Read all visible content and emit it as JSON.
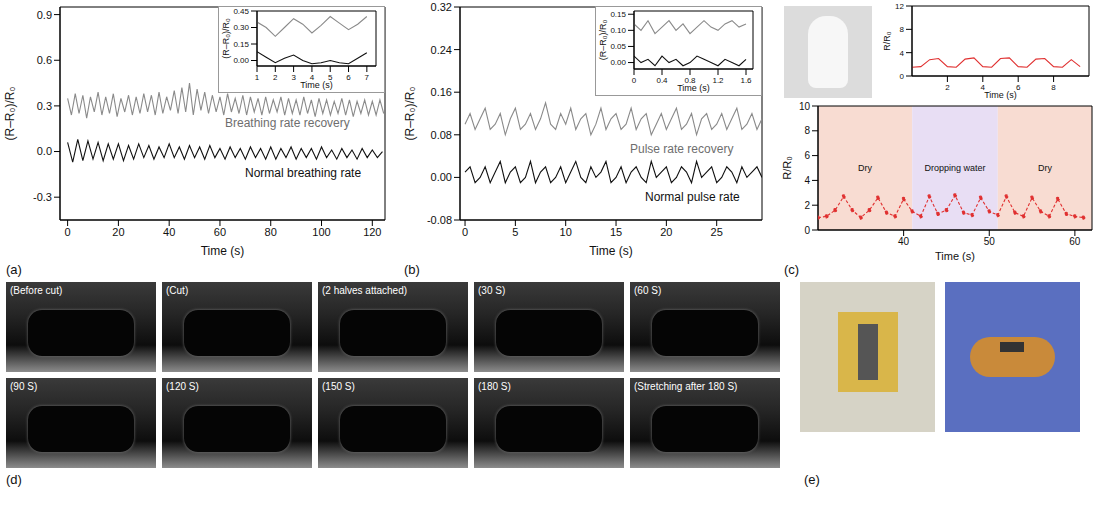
{
  "chart_data": [
    {
      "type": "line",
      "xlabel": "Time (s)",
      "ylabel": "(R–R₀)/R₀",
      "xlim": [
        -3,
        125
      ],
      "ylim": [
        -0.45,
        0.95
      ],
      "xticks": [
        0,
        20,
        40,
        60,
        80,
        100,
        120
      ],
      "yticks": [
        -0.3,
        {
          "value": 0,
          "label": "0.0"
        },
        0.3,
        0.6,
        0.9
      ],
      "series": [
        {
          "name": "Breathing rate recovery",
          "color": "#8a8a8a",
          "x": [
            0,
            1.5,
            3,
            4.5,
            6,
            7.5,
            9,
            10.5,
            12,
            13.5,
            15,
            16.5,
            18,
            19.5,
            21,
            22.5,
            24,
            25.5,
            27,
            28.5,
            30,
            31.5,
            33,
            34.5,
            36,
            37.5,
            39,
            40.5,
            42,
            43.5,
            45,
            46.5,
            48,
            49.5,
            51,
            52.5,
            54,
            55.5,
            57,
            58.5,
            60,
            61.5,
            63,
            64.5,
            66,
            67.5,
            69,
            70.5,
            72,
            73.5,
            75,
            76.5,
            78,
            79.5,
            81,
            82.5,
            84,
            85.5,
            87,
            88.5,
            90,
            91.5,
            93,
            94.5,
            96,
            97.5,
            99,
            100.5,
            102,
            103.5,
            105,
            106.5,
            108,
            109.5,
            111,
            112.5,
            114,
            115.5,
            117,
            118.5,
            120,
            121.5,
            123,
            124.5
          ],
          "values": [
            0.35,
            0.24,
            0.38,
            0.25,
            0.37,
            0.22,
            0.36,
            0.26,
            0.39,
            0.24,
            0.36,
            0.25,
            0.38,
            0.23,
            0.35,
            0.26,
            0.37,
            0.24,
            0.36,
            0.25,
            0.38,
            0.26,
            0.37,
            0.24,
            0.39,
            0.25,
            0.36,
            0.27,
            0.4,
            0.25,
            0.42,
            0.26,
            0.45,
            0.24,
            0.41,
            0.27,
            0.39,
            0.25,
            0.37,
            0.26,
            0.36,
            0.24,
            0.38,
            0.26,
            0.35,
            0.25,
            0.37,
            0.24,
            0.36,
            0.26,
            0.35,
            0.24,
            0.36,
            0.25,
            0.34,
            0.26,
            0.36,
            0.24,
            0.35,
            0.25,
            0.34,
            0.24,
            0.36,
            0.25,
            0.34,
            0.23,
            0.35,
            0.25,
            0.34,
            0.24,
            0.33,
            0.25,
            0.35,
            0.24,
            0.34,
            0.23,
            0.33,
            0.25,
            0.34,
            0.24,
            0.33,
            0.24,
            0.34,
            0.25
          ]
        },
        {
          "name": "Normal breathing rate",
          "color": "#111111",
          "x": [
            0,
            2,
            4,
            6,
            8,
            10,
            12,
            14,
            16,
            18,
            20,
            22,
            24,
            26,
            28,
            30,
            32,
            34,
            36,
            38,
            40,
            42,
            44,
            46,
            48,
            50,
            52,
            54,
            56,
            58,
            60,
            62,
            64,
            66,
            68,
            70,
            72,
            74,
            76,
            78,
            80,
            82,
            84,
            86,
            88,
            90,
            92,
            94,
            96,
            98,
            100,
            102,
            104,
            106,
            108,
            110,
            112,
            114,
            116,
            118,
            120,
            122,
            124
          ],
          "values": [
            0.06,
            -0.07,
            0.08,
            -0.06,
            0.07,
            -0.05,
            0.06,
            -0.06,
            0.05,
            -0.05,
            0.05,
            -0.06,
            0.04,
            -0.05,
            0.05,
            -0.04,
            0.04,
            -0.05,
            0.03,
            -0.04,
            0.05,
            -0.04,
            0.03,
            -0.05,
            0.04,
            -0.04,
            0.03,
            -0.05,
            0.04,
            -0.04,
            0.02,
            -0.05,
            0.03,
            -0.04,
            0.02,
            -0.05,
            0.03,
            -0.04,
            0.02,
            -0.05,
            0.03,
            -0.05,
            0.02,
            -0.04,
            0.03,
            -0.05,
            0.02,
            -0.04,
            0.02,
            -0.05,
            0.03,
            -0.04,
            0.01,
            -0.05,
            0.02,
            -0.04,
            0.01,
            -0.05,
            0.02,
            -0.04,
            0.01,
            -0.04,
            0.0
          ]
        }
      ]
    },
    {
      "type": "line",
      "xlabel": "Time (s)",
      "ylabel": "(R–R₀)/R₀",
      "xlim": [
        1,
        7.5
      ],
      "ylim": [
        -0.05,
        0.45
      ],
      "xticks": [
        1,
        2,
        3,
        4,
        5,
        6,
        7
      ],
      "yticks": [
        {
          "value": 0,
          "label": "0.00"
        },
        0.15,
        {
          "value": 0.3,
          "label": "0.30"
        },
        0.45
      ],
      "series": [
        {
          "color": "#8a8a8a",
          "x": [
            1,
            1.5,
            2,
            2.5,
            3,
            3.5,
            4,
            4.5,
            5,
            5.5,
            6,
            6.5,
            7
          ],
          "values": [
            0.35,
            0.3,
            0.22,
            0.3,
            0.38,
            0.33,
            0.25,
            0.32,
            0.4,
            0.34,
            0.28,
            0.33,
            0.4
          ]
        },
        {
          "color": "#111111",
          "x": [
            1,
            1.5,
            2,
            2.5,
            3,
            3.5,
            4,
            4.5,
            5,
            5.5,
            6,
            6.5,
            7
          ],
          "values": [
            0.08,
            0.03,
            -0.02,
            0.02,
            0.05,
            0.0,
            -0.03,
            -0.02,
            0.0,
            -0.02,
            -0.03,
            0.02,
            0.07
          ]
        }
      ]
    },
    {
      "type": "line",
      "xlabel": "Time (s)",
      "ylabel": "(R–R₀)/R₀",
      "xlim": [
        -0.5,
        29.5
      ],
      "ylim": [
        -0.08,
        0.32
      ],
      "xticks": [
        0,
        5,
        10,
        15,
        20,
        25
      ],
      "yticks": [
        -0.08,
        {
          "value": 0,
          "label": "0.00"
        },
        0.08,
        0.16,
        0.24,
        0.32
      ],
      "series": [
        {
          "name": "Pulse rate recovery",
          "color": "#8a8a8a",
          "x": [
            0,
            0.5,
            1,
            1.5,
            2,
            2.5,
            3,
            3.5,
            4,
            4.5,
            5,
            5.5,
            6,
            6.5,
            7,
            7.5,
            8,
            8.5,
            9,
            9.5,
            10,
            10.5,
            11,
            11.5,
            12,
            12.5,
            13,
            13.5,
            14,
            14.5,
            15,
            15.5,
            16,
            16.5,
            17,
            17.5,
            18,
            18.5,
            19,
            19.5,
            20,
            20.5,
            21,
            21.5,
            22,
            22.5,
            23,
            23.5,
            24,
            24.5,
            25,
            25.5,
            26,
            26.5,
            27,
            27.5,
            28,
            28.5,
            29,
            29.5
          ],
          "values": [
            0.1,
            0.12,
            0.09,
            0.11,
            0.13,
            0.09,
            0.1,
            0.12,
            0.08,
            0.11,
            0.13,
            0.09,
            0.1,
            0.12,
            0.09,
            0.11,
            0.14,
            0.1,
            0.09,
            0.12,
            0.1,
            0.13,
            0.09,
            0.11,
            0.12,
            0.08,
            0.1,
            0.13,
            0.09,
            0.11,
            0.12,
            0.09,
            0.1,
            0.13,
            0.09,
            0.11,
            0.12,
            0.08,
            0.1,
            0.12,
            0.09,
            0.11,
            0.13,
            0.09,
            0.1,
            0.12,
            0.08,
            0.11,
            0.12,
            0.09,
            0.1,
            0.12,
            0.09,
            0.11,
            0.13,
            0.09,
            0.1,
            0.12,
            0.09,
            0.11
          ]
        },
        {
          "name": "Normal pulse rate",
          "color": "#111111",
          "x": [
            0,
            0.5,
            1,
            1.5,
            2,
            2.5,
            3,
            3.5,
            4,
            4.5,
            5,
            5.5,
            6,
            6.5,
            7,
            7.5,
            8,
            8.5,
            9,
            9.5,
            10,
            10.5,
            11,
            11.5,
            12,
            12.5,
            13,
            13.5,
            14,
            14.5,
            15,
            15.5,
            16,
            16.5,
            17,
            17.5,
            18,
            18.5,
            19,
            19.5,
            20,
            20.5,
            21,
            21.5,
            22,
            22.5,
            23,
            23.5,
            24,
            24.5,
            25,
            25.5,
            26,
            26.5,
            27,
            27.5,
            28,
            28.5,
            29,
            29.5
          ],
          "values": [
            0.01,
            0.02,
            -0.01,
            0.0,
            0.02,
            -0.01,
            0.01,
            0.03,
            -0.01,
            0.01,
            0.02,
            -0.01,
            0.0,
            0.03,
            -0.01,
            0.01,
            0.02,
            -0.01,
            0.0,
            0.02,
            -0.01,
            0.01,
            0.03,
            0.0,
            -0.01,
            0.02,
            0.0,
            0.01,
            0.03,
            -0.01,
            0.0,
            0.02,
            -0.01,
            0.01,
            0.02,
            0.0,
            -0.01,
            0.03,
            0.0,
            0.01,
            0.02,
            -0.01,
            0.0,
            0.02,
            0.01,
            -0.01,
            0.03,
            0.0,
            0.01,
            0.02,
            -0.01,
            0.0,
            0.02,
            0.01,
            -0.01,
            0.02,
            0.0,
            0.01,
            0.02,
            0.0
          ]
        }
      ]
    },
    {
      "type": "line",
      "xlabel": "Time (s)",
      "ylabel": "(R–R₀)/R₀",
      "xlim": [
        0,
        1.7
      ],
      "ylim": [
        -0.02,
        0.16
      ],
      "xticks": [
        0,
        0.4,
        0.8,
        1.2,
        1.6
      ],
      "yticks": [
        {
          "value": 0,
          "label": "0.00"
        },
        0.05,
        {
          "value": 0.1,
          "label": "0.10"
        },
        0.15
      ],
      "series": [
        {
          "color": "#8a8a8a",
          "x": [
            0,
            0.1,
            0.2,
            0.3,
            0.4,
            0.5,
            0.6,
            0.7,
            0.8,
            0.9,
            1,
            1.1,
            1.2,
            1.3,
            1.4,
            1.5,
            1.6
          ],
          "values": [
            0.12,
            0.1,
            0.13,
            0.09,
            0.11,
            0.13,
            0.1,
            0.12,
            0.09,
            0.11,
            0.13,
            0.11,
            0.1,
            0.12,
            0.13,
            0.11,
            0.12
          ]
        },
        {
          "color": "#111111",
          "x": [
            0,
            0.1,
            0.2,
            0.3,
            0.4,
            0.5,
            0.6,
            0.7,
            0.8,
            0.9,
            1,
            1.1,
            1.2,
            1.3,
            1.4,
            1.5,
            1.6
          ],
          "values": [
            0.02,
            0.0,
            0.01,
            -0.01,
            0.02,
            0.0,
            0.01,
            -0.01,
            0.0,
            0.02,
            0.01,
            0.0,
            -0.01,
            0.01,
            0.0,
            -0.01,
            0.01
          ]
        }
      ]
    },
    {
      "type": "line",
      "xlabel": "Time (s)",
      "ylabel": "R/R₀",
      "xlim": [
        0,
        10
      ],
      "ylim": [
        0,
        12
      ],
      "xticks": [
        2,
        4,
        6,
        8
      ],
      "yticks": [
        0,
        4,
        8,
        12
      ],
      "series": [
        {
          "color": "#e03030",
          "x": [
            0,
            0.5,
            1,
            1.5,
            2,
            2.5,
            3,
            3.5,
            4,
            4.5,
            5,
            5.5,
            6,
            6.5,
            7,
            7.5,
            8,
            8.5,
            9,
            9.5
          ],
          "values": [
            1.5,
            1.6,
            2.8,
            3.0,
            1.6,
            1.5,
            2.9,
            3.1,
            1.6,
            1.5,
            3.0,
            3.1,
            1.6,
            1.5,
            2.9,
            3.0,
            1.6,
            1.5,
            2.8,
            1.6
          ]
        }
      ]
    },
    {
      "type": "line",
      "xlabel": "Time (s)",
      "ylabel": "R/R₀",
      "xlim": [
        30,
        62
      ],
      "ylim": [
        0,
        10
      ],
      "xticks": [
        40,
        50,
        60
      ],
      "yticks": [
        0,
        2,
        4,
        6,
        8,
        10
      ],
      "regions": [
        {
          "label": "Dry",
          "x": [
            30,
            41
          ],
          "color": "#f8dcd2"
        },
        {
          "label": "Dropping water",
          "x": [
            41,
            51
          ],
          "color": "#e8def4"
        },
        {
          "label": "Dry",
          "x": [
            51,
            62
          ],
          "color": "#f8dcd2"
        }
      ],
      "series": [
        {
          "color": "#e03030",
          "marker": "circle",
          "line_style": "dashed",
          "x": [
            30,
            31,
            32,
            33,
            34,
            35,
            36,
            37,
            38,
            39,
            40,
            41,
            42,
            43,
            44,
            45,
            46,
            47,
            48,
            49,
            50,
            51,
            52,
            53,
            54,
            55,
            56,
            57,
            58,
            59,
            60,
            61
          ],
          "values": [
            1.0,
            1.1,
            1.6,
            2.7,
            1.6,
            1.0,
            1.6,
            2.6,
            1.4,
            1.1,
            2.5,
            1.5,
            1.1,
            2.7,
            1.3,
            1.6,
            2.8,
            1.4,
            1.2,
            2.6,
            1.5,
            1.2,
            2.7,
            1.4,
            1.1,
            2.6,
            1.5,
            1.1,
            2.5,
            1.3,
            1.1,
            1.0
          ]
        }
      ]
    }
  ],
  "figure": {
    "panel_labels": [
      "(a)",
      "(b)",
      "(c)",
      "(d)",
      "(e)"
    ],
    "photo_frames": [
      "(Before cut)",
      "(Cut)",
      "(2 halves attached)",
      "(30 S)",
      "(60 S)",
      "(90 S)",
      "(120 S)",
      "(150 S)",
      "(180 S)",
      "(Stretching after 180 S)"
    ]
  }
}
